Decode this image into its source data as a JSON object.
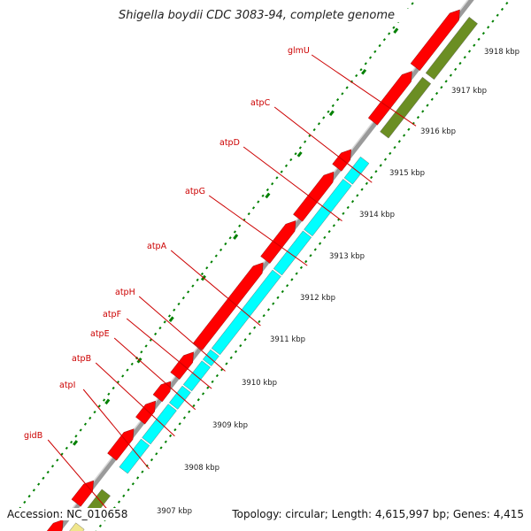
{
  "header": {
    "title": "Shigella boydii CDC 3083-94, complete genome"
  },
  "footer": {
    "accession": "Accession: NC_010658",
    "summary": "Topology: circular; Length: 4,615,997 bp; Genes: 4,415"
  },
  "colors": {
    "gene_label": "#cc0000",
    "forward_strand_gene": "#6b8e23",
    "forward_strand_gene_highlight": "#00ffff",
    "reverse_strand_cds": "#ff0000",
    "backbone": "#9a9a9a",
    "tick_marks": "#008000",
    "rna": "#f0e68c"
  },
  "gene_labels": [
    "glmU",
    "atpC",
    "atpD",
    "atpG",
    "atpA",
    "atpH",
    "atpF",
    "atpE",
    "atpB",
    "atpI",
    "gidB"
  ],
  "scale_labels": [
    "3918 kbp",
    "3917 kbp",
    "3916 kbp",
    "3915 kbp",
    "3914 kbp",
    "3913 kbp",
    "3912 kbp",
    "3911 kbp",
    "3910 kbp",
    "3909 kbp",
    "3908 kbp",
    "3907 kbp"
  ]
}
